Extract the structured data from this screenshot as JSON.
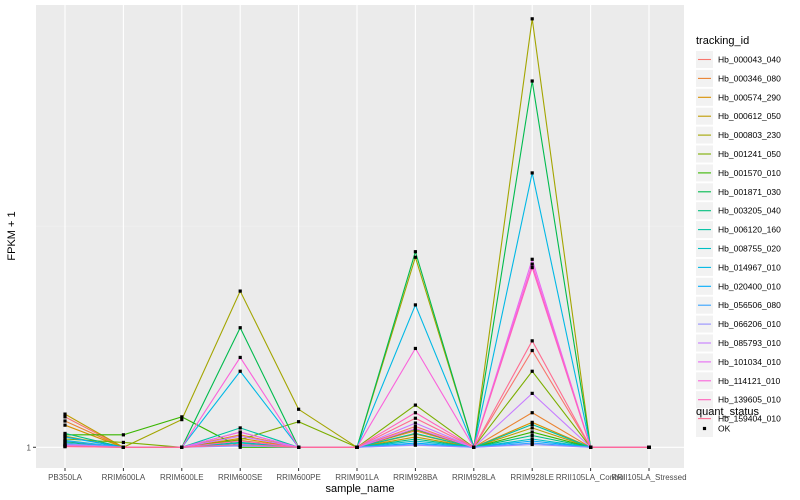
{
  "chart_data": {
    "type": "line",
    "xlabel": "sample_name",
    "ylabel": "FPKM + 1",
    "categories": [
      "PB350LA",
      "RRIM600LA",
      "RRIM600LE",
      "RRIM600SE",
      "RRIM600PE",
      "RRIM901LA",
      "RRIM928BA",
      "RRIM928LA",
      "RRIM928LE",
      "RRII105LA_Control",
      "RRII105LA_Stressed"
    ],
    "y_ticks": [
      {
        "value": 1,
        "label": "1"
      }
    ],
    "ylim": [
      0.97,
      1.64
    ],
    "grid": true,
    "legend": {
      "title": "tracking_id",
      "position": "right"
    },
    "legend2": {
      "title": "quant_status",
      "entries": [
        "OK"
      ]
    },
    "series": [
      {
        "name": "Hb_000043_040",
        "color": "#F8766D",
        "values": [
          1.044,
          1.0,
          1.0,
          1.022,
          1.0,
          1.0,
          1.03,
          1.0,
          1.14,
          1.0,
          1.0
        ]
      },
      {
        "name": "Hb_000346_080",
        "color": "#EA8331",
        "values": [
          1.038,
          1.0,
          1.0,
          1.018,
          1.0,
          1.0,
          1.024,
          1.0,
          1.05,
          1.0,
          1.0
        ]
      },
      {
        "name": "Hb_000574_290",
        "color": "#D89000",
        "values": [
          1.032,
          1.0,
          1.0,
          1.013,
          1.0,
          1.0,
          1.019,
          1.0,
          1.036,
          1.0,
          1.0
        ]
      },
      {
        "name": "Hb_000612_050",
        "color": "#C09B00",
        "values": [
          1.048,
          1.0,
          1.0,
          1.01,
          1.0,
          1.0,
          1.015,
          1.0,
          1.028,
          1.0,
          1.0
        ]
      },
      {
        "name": "Hb_000803_230",
        "color": "#A3A500",
        "values": [
          1.016,
          1.0,
          1.04,
          1.226,
          1.055,
          1.0,
          1.275,
          1.0,
          1.62,
          1.0,
          1.0
        ]
      },
      {
        "name": "Hb_001241_050",
        "color": "#7CAE00",
        "values": [
          1.012,
          1.007,
          1.0,
          1.011,
          1.037,
          1.0,
          1.061,
          1.0,
          1.11,
          1.0,
          1.0
        ]
      },
      {
        "name": "Hb_001570_010",
        "color": "#39B600",
        "values": [
          1.018,
          1.018,
          1.044,
          1.0,
          1.0,
          1.0,
          1.026,
          1.0,
          1.022,
          1.0,
          1.0
        ]
      },
      {
        "name": "Hb_001871_030",
        "color": "#00BB4E",
        "values": [
          1.008,
          1.0,
          1.0,
          1.173,
          1.0,
          1.0,
          1.283,
          1.0,
          1.53,
          1.0,
          1.0
        ]
      },
      {
        "name": "Hb_003205_040",
        "color": "#00BF7D",
        "values": [
          1.02,
          1.0,
          1.0,
          1.007,
          1.0,
          1.0,
          1.012,
          1.0,
          1.017,
          1.0,
          1.0
        ]
      },
      {
        "name": "Hb_006120_160",
        "color": "#00C1A3",
        "values": [
          1.01,
          1.0,
          1.0,
          1.028,
          1.0,
          1.0,
          1.02,
          1.0,
          1.033,
          1.0,
          1.0
        ]
      },
      {
        "name": "Hb_008755_020",
        "color": "#00BFC4",
        "values": [
          1.006,
          1.0,
          1.0,
          1.006,
          1.0,
          1.0,
          1.009,
          1.0,
          1.012,
          1.0,
          1.0
        ]
      },
      {
        "name": "Hb_014967_010",
        "color": "#00B8E5",
        "values": [
          1.004,
          1.0,
          1.0,
          1.11,
          1.0,
          1.0,
          1.206,
          1.0,
          1.397,
          1.0,
          1.0
        ]
      },
      {
        "name": "Hb_020400_010",
        "color": "#00ACFC",
        "values": [
          1.015,
          1.0,
          1.0,
          1.004,
          1.0,
          1.0,
          1.006,
          1.0,
          1.009,
          1.0,
          1.0
        ]
      },
      {
        "name": "Hb_056506_080",
        "color": "#35A2FF",
        "values": [
          1.009,
          1.0,
          1.0,
          1.003,
          1.0,
          1.0,
          1.004,
          1.0,
          1.006,
          1.0,
          1.0
        ]
      },
      {
        "name": "Hb_066206_010",
        "color": "#9590FF",
        "values": [
          1.005,
          1.0,
          1.0,
          1.002,
          1.0,
          1.0,
          1.003,
          1.0,
          1.004,
          1.0,
          1.0
        ]
      },
      {
        "name": "Hb_085793_010",
        "color": "#C77CFF",
        "values": [
          1.003,
          1.0,
          1.0,
          1.016,
          1.0,
          1.0,
          1.035,
          1.0,
          1.078,
          1.0,
          1.0
        ]
      },
      {
        "name": "Hb_101034_010",
        "color": "#E76BF3",
        "values": [
          1.002,
          1.0,
          1.0,
          1.022,
          1.0,
          1.0,
          1.027,
          1.0,
          1.272,
          1.0,
          1.0
        ]
      },
      {
        "name": "Hb_114121_010",
        "color": "#FA62DB",
        "values": [
          1.001,
          1.0,
          1.0,
          1.13,
          1.0,
          1.0,
          1.143,
          1.0,
          1.265,
          1.0,
          1.0
        ]
      },
      {
        "name": "Hb_139605_010",
        "color": "#FF62BC",
        "values": [
          1.002,
          1.0,
          1.0,
          1.009,
          1.0,
          1.0,
          1.05,
          1.0,
          1.26,
          1.0,
          1.0
        ]
      },
      {
        "name": "Hb_159404_010",
        "color": "#FF6C91",
        "values": [
          1.001,
          1.0,
          1.0,
          1.004,
          1.0,
          1.0,
          1.042,
          1.0,
          1.154,
          1.0,
          1.0
        ]
      }
    ]
  }
}
